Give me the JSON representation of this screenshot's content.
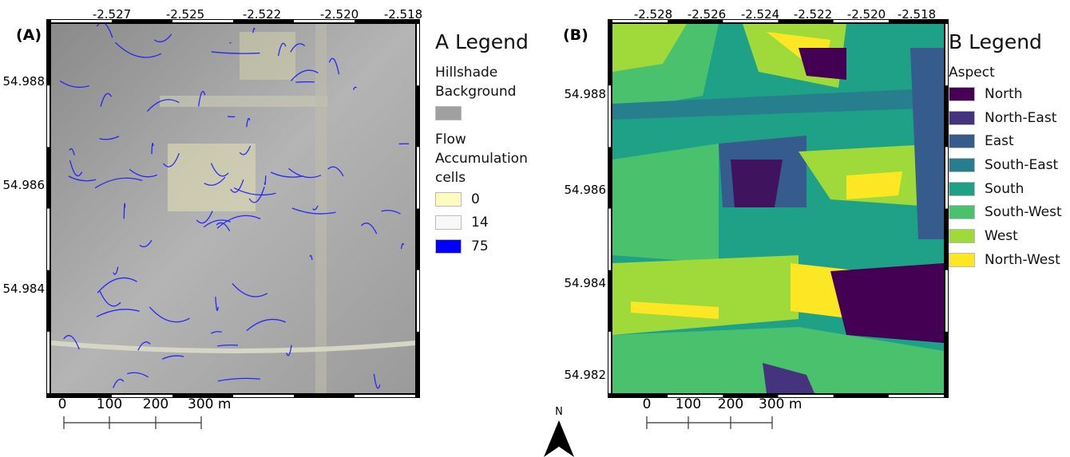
{
  "north_arrow": "N",
  "panels": [
    {
      "label": "(A)",
      "top_ticks": [
        "-2.527",
        "-2.525",
        "-2.522",
        "-2.520",
        "-2.518"
      ],
      "left_ticks": [
        "54.988",
        "54.986",
        "54.984"
      ],
      "scale_labels": [
        "0",
        "100",
        "200",
        "300 m"
      ],
      "legend": {
        "title": "A Legend",
        "groups": [
          {
            "heading": "Hillshade Background",
            "items": [
              {
                "color": "#a0a0a0"
              }
            ]
          },
          {
            "heading": "Flow Accumulation cells",
            "items": [
              {
                "label": "0",
                "color": "#fdfbc0"
              },
              {
                "label": "14",
                "color": "#f8f8f8"
              },
              {
                "label": "75",
                "color": "#0000ff"
              }
            ]
          }
        ]
      }
    },
    {
      "label": "(B)",
      "top_ticks": [
        "-2.528",
        "-2.526",
        "-2.524",
        "-2.522",
        "-2.520",
        "-2.518"
      ],
      "left_ticks": [
        "54.988",
        "54.986",
        "54.984",
        "54.982"
      ],
      "scale_labels": [
        "0",
        "100",
        "200",
        "300 m"
      ],
      "legend": {
        "title": "B Legend",
        "groups": [
          {
            "heading": "Aspect",
            "items": [
              {
                "label": "North",
                "color": "#440154"
              },
              {
                "label": "North-East",
                "color": "#46337e"
              },
              {
                "label": "East",
                "color": "#365c8d"
              },
              {
                "label": "South-East",
                "color": "#277f8e"
              },
              {
                "label": "South",
                "color": "#1fa187"
              },
              {
                "label": "South-West",
                "color": "#4ac16d"
              },
              {
                "label": "West",
                "color": "#9fda3a"
              },
              {
                "label": "North-West",
                "color": "#fde725"
              }
            ]
          }
        ]
      }
    }
  ]
}
